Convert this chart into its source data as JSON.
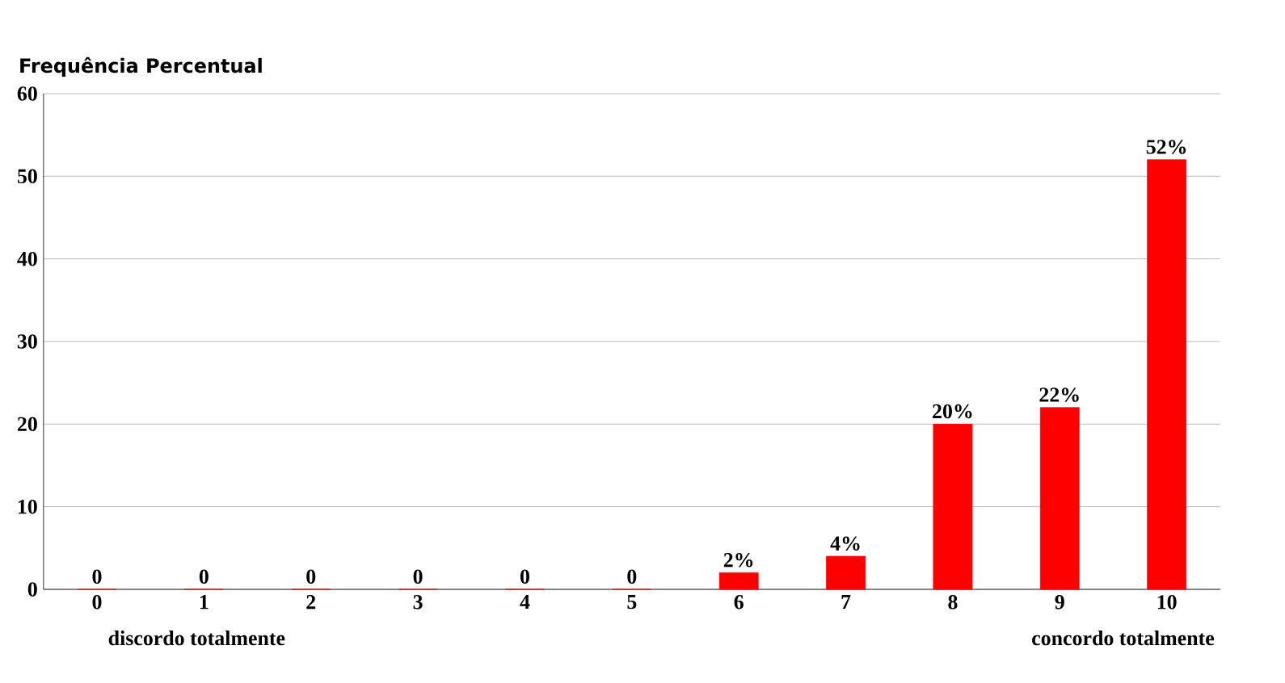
{
  "chart_data": {
    "type": "bar",
    "ylabel": "Frequência Percentual",
    "categories": [
      "0",
      "1",
      "2",
      "3",
      "4",
      "5",
      "6",
      "7",
      "8",
      "9",
      "10"
    ],
    "values": [
      0,
      0,
      0,
      0,
      0,
      0,
      2,
      4,
      20,
      22,
      52
    ],
    "value_labels": [
      "0",
      "0",
      "0",
      "0",
      "0",
      "0",
      "2%",
      "4%",
      "20%",
      "22%",
      "52%"
    ],
    "color": "#ff0000",
    "ylim": [
      0,
      60
    ],
    "yticks": [
      0,
      10,
      20,
      30,
      40,
      50,
      60
    ],
    "grid": "y",
    "annotations": [
      "discordo totalmente",
      "concordo totalmente"
    ]
  }
}
